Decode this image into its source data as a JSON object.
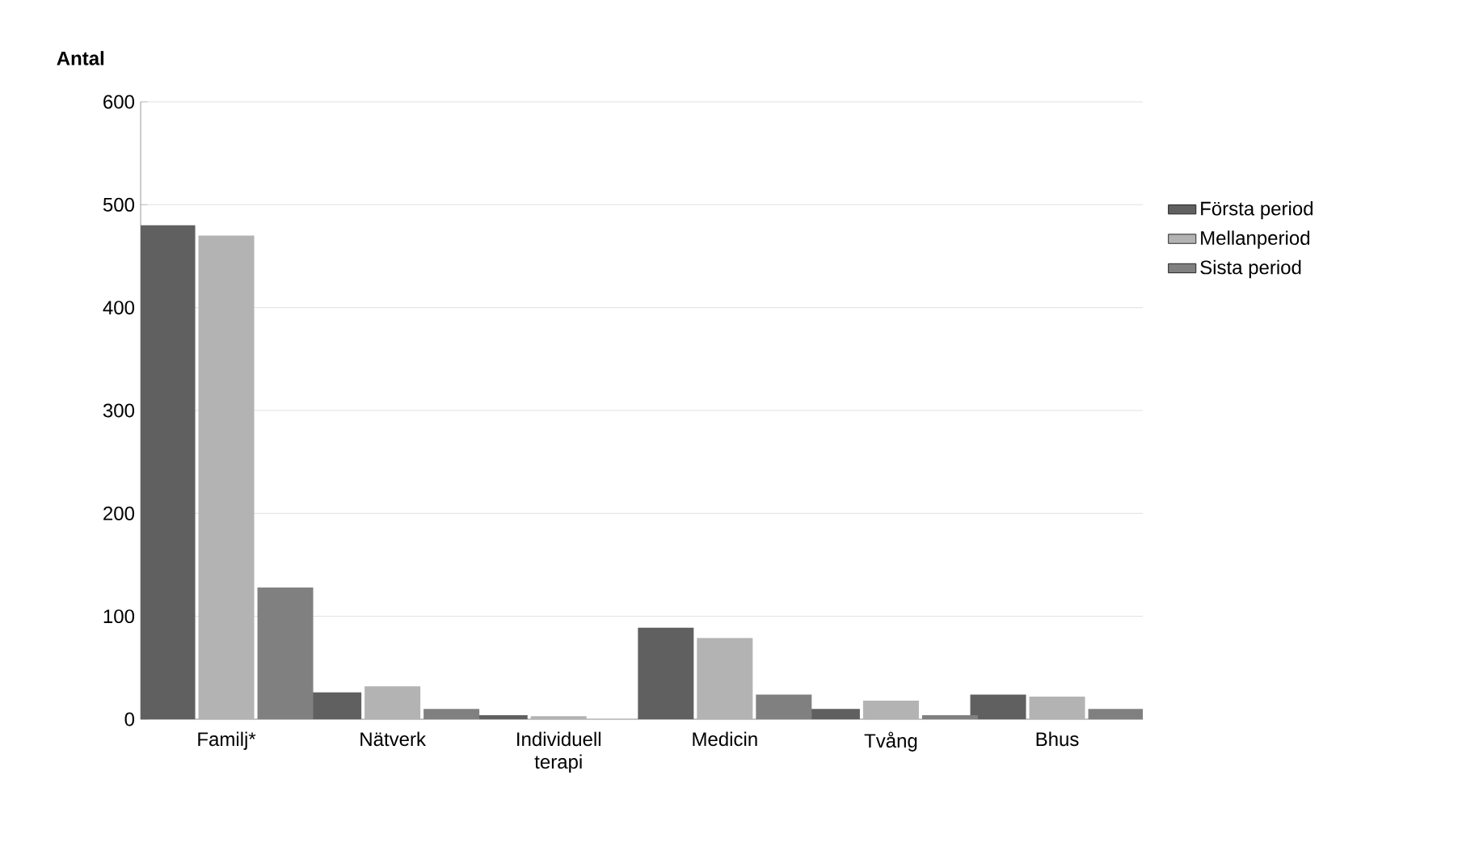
{
  "chart_data": {
    "type": "bar",
    "ylabel": "Antal",
    "categories": [
      "Familj*",
      "Nätverk",
      "Individuell terapi",
      "Medicin",
      "Tvång",
      "Bhus"
    ],
    "series": [
      {
        "name": "Första period",
        "color": "#606060",
        "values": [
          480,
          26,
          4,
          89,
          10,
          24
        ]
      },
      {
        "name": "Mellanperiod",
        "color": "#b3b3b3",
        "values": [
          470,
          32,
          3,
          79,
          18,
          22
        ]
      },
      {
        "name": "Sista period",
        "color": "#808080",
        "values": [
          128,
          10,
          0,
          24,
          4,
          10
        ]
      }
    ],
    "ylim": [
      0,
      600
    ],
    "yticks": [
      0,
      100,
      200,
      300,
      400,
      500,
      600
    ],
    "grid": "y",
    "legend": "right"
  }
}
